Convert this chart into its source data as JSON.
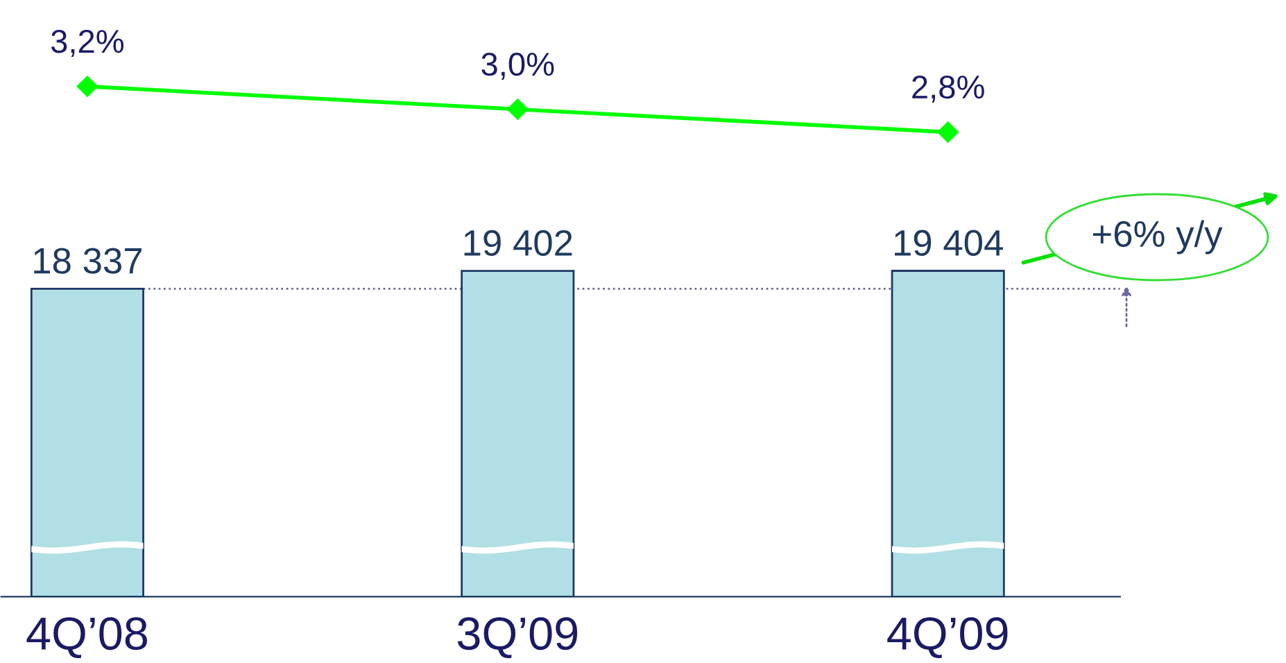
{
  "chart_data": [
    {
      "type": "line",
      "categories": [
        null,
        null,
        null
      ],
      "tick_labels": false,
      "grid": false,
      "legend": false,
      "series": [
        {
          "color": "#00ff00",
          "marker": "diamond",
          "values": [
            3.2,
            3.0,
            2.8
          ],
          "value_labels": [
            "3,2%",
            "3,0%",
            "2,8%"
          ]
        }
      ]
    },
    {
      "type": "bar",
      "categories": [
        "4Q’08",
        "3Q’09",
        "4Q’09"
      ],
      "tick_labels": "x",
      "grid": false,
      "legend": false,
      "series": [
        {
          "color": "#b0dfe5",
          "values": [
            18337,
            19402,
            19404
          ],
          "value_labels": [
            "18 337",
            "19 402",
            "19 404"
          ]
        }
      ],
      "ref_lines": [
        {
          "axis": "y",
          "value": 18337,
          "color": "#6a6aa0",
          "line_style": "dotted"
        }
      ],
      "annotations": [
        "+6% y/y"
      ]
    }
  ]
}
